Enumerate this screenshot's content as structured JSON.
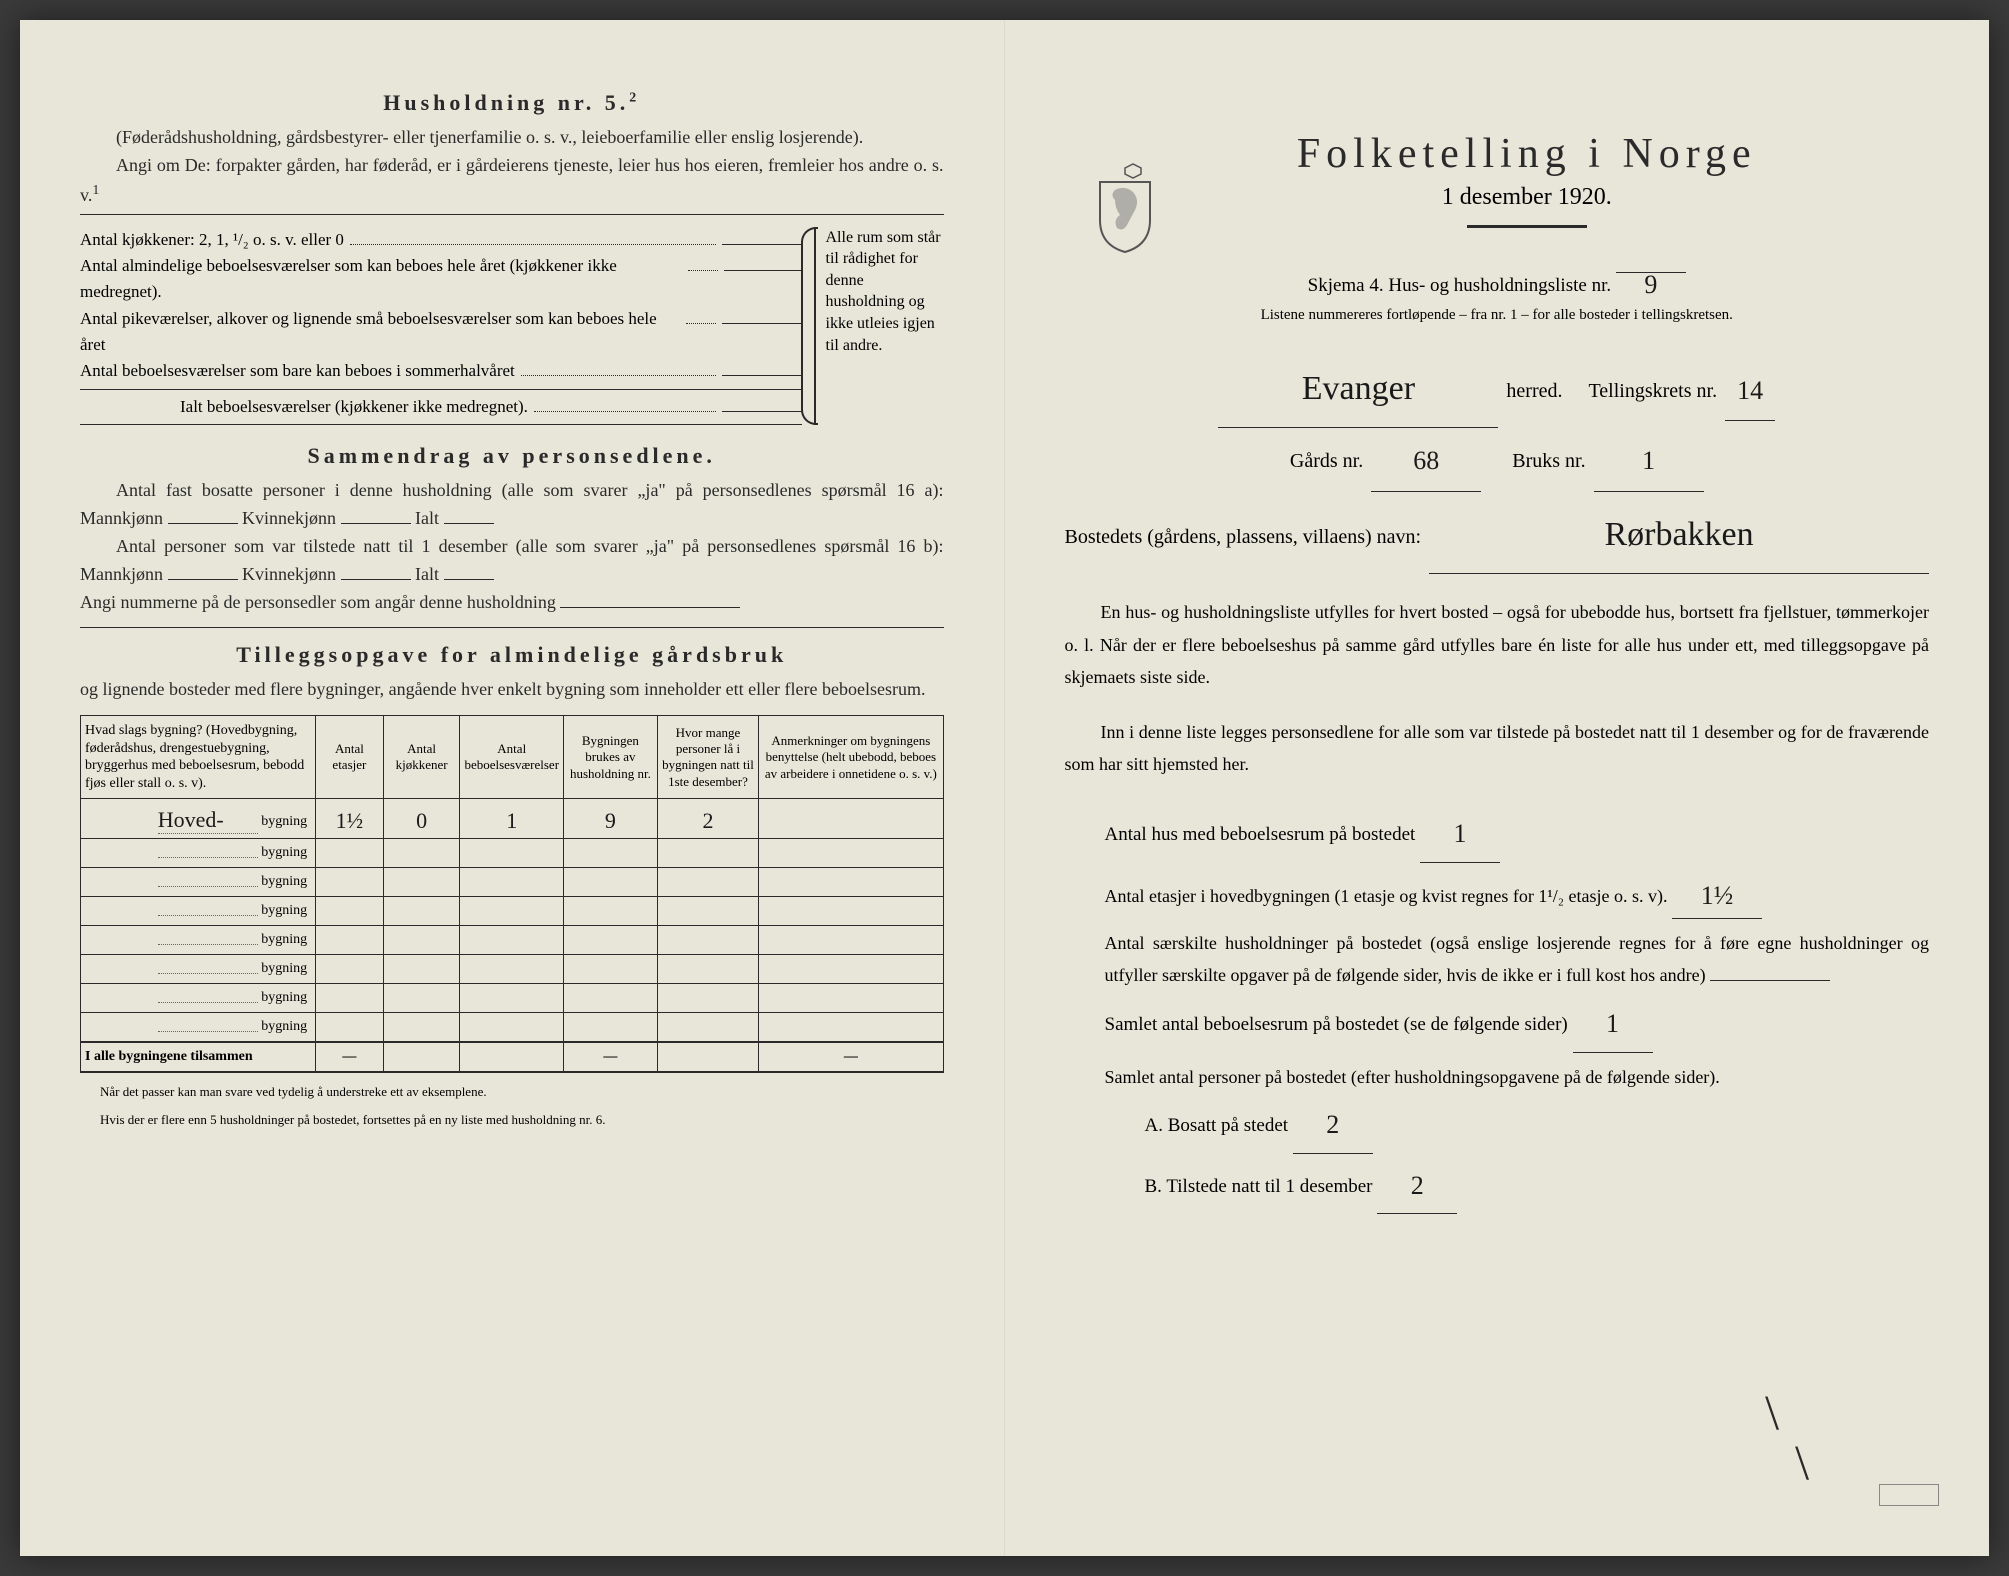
{
  "left": {
    "household_heading": "Husholdning nr. 5.",
    "household_sup": "2",
    "hh_para1": "(Føderådshusholdning, gårdsbestyrer- eller tjenerfamilie o. s. v., leieboerfamilie eller enslig losjerende).",
    "hh_para2": "Angi om De: forpakter gården, har føderåd, er i gårdeierens tjeneste, leier hus hos eieren, fremleier hos andre o. s. v.",
    "hh_para2_sup": "1",
    "rooms": {
      "kitchens": "Antal kjøkkener: 2, 1, ¹/₂ o. s. v. eller 0",
      "line1": "Antal almindelige beboelsesværelser som kan beboes hele året (kjøkkener ikke medregnet).",
      "line2": "Antal pikeværelser, alkover og lignende små beboelsesværelser som kan beboes hele året",
      "line3": "Antal beboelsesværelser som bare kan beboes i sommerhalvåret",
      "total": "Ialt beboelsesværelser (kjøkkener ikke medregnet).",
      "side_note": "Alle rum som står til rådighet for denne husholdning og ikke utleies igjen til andre."
    },
    "summary_heading": "Sammendrag av personsedlene.",
    "summary_p1a": "Antal fast bosatte personer i denne husholdning (alle som svarer „ja\" på personsedlenes spørsmål 16 a): Mannkjønn",
    "summary_kvin": "Kvinnekjønn",
    "summary_ialt": "Ialt",
    "summary_p2a": "Antal personer som var tilstede natt til 1 desember (alle som svarer „ja\" på personsedlenes spørsmål 16 b): Mannkjønn",
    "summary_p3": "Angi nummerne på de personsedler som angår denne husholdning",
    "tillegg_heading": "Tilleggsopgave for almindelige gårdsbruk",
    "tillegg_sub": "og lignende bosteder med flere bygninger, angående hver enkelt bygning som inneholder ett eller flere beboelsesrum.",
    "table": {
      "headers": [
        "Hvad slags bygning?\n(Hovedbygning, føderådshus, drengestuebygning, bryggerhus med beboelsesrum, bebodd fjøs eller stall o. s. v).",
        "Antal etasjer",
        "Antal kjøkkener",
        "Antal beboelsesværelser",
        "Bygningen brukes av husholdning nr.",
        "Hvor mange personer lå i bygningen natt til 1ste desember?",
        "Anmerkninger om bygningens benyttelse (helt ubebodd, beboes av arbeidere i onnetidene o. s. v.)"
      ],
      "row_label": "bygning",
      "rows": [
        {
          "name": "Hoved-",
          "etasjer": "1½",
          "kjokken": "0",
          "beboelse": "1",
          "hushold": "9",
          "personer": "2",
          "anm": ""
        },
        {
          "name": "",
          "etasjer": "",
          "kjokken": "",
          "beboelse": "",
          "hushold": "",
          "personer": "",
          "anm": ""
        },
        {
          "name": "",
          "etasjer": "",
          "kjokken": "",
          "beboelse": "",
          "hushold": "",
          "personer": "",
          "anm": ""
        },
        {
          "name": "",
          "etasjer": "",
          "kjokken": "",
          "beboelse": "",
          "hushold": "",
          "personer": "",
          "anm": ""
        },
        {
          "name": "",
          "etasjer": "",
          "kjokken": "",
          "beboelse": "",
          "hushold": "",
          "personer": "",
          "anm": ""
        },
        {
          "name": "",
          "etasjer": "",
          "kjokken": "",
          "beboelse": "",
          "hushold": "",
          "personer": "",
          "anm": ""
        },
        {
          "name": "",
          "etasjer": "",
          "kjokken": "",
          "beboelse": "",
          "hushold": "",
          "personer": "",
          "anm": ""
        },
        {
          "name": "",
          "etasjer": "",
          "kjokken": "",
          "beboelse": "",
          "hushold": "",
          "personer": "",
          "anm": ""
        }
      ],
      "sum_label": "I alle bygningene tilsammen",
      "dash": "—"
    },
    "footnote1": "Når det passer kan man svare ved tydelig å understreke ett av eksemplene.",
    "footnote2": "Hvis der er flere enn 5 husholdninger på bostedet, fortsettes på en ny liste med husholdning nr. 6."
  },
  "right": {
    "main_title": "Folketelling i Norge",
    "date": "1 desember 1920.",
    "skjema_line": "Skjema 4.  Hus- og husholdningsliste nr.",
    "skjema_nr": "9",
    "listene_note": "Listene nummereres fortløpende – fra nr. 1 – for alle bosteder i tellingskretsen.",
    "herred_value": "Evanger",
    "herred_label": "herred.",
    "tellingskrets_label": "Tellingskrets nr.",
    "tellingskrets_nr": "14",
    "gards_label": "Gårds nr.",
    "gards_nr": "68",
    "bruks_label": "Bruks nr.",
    "bruks_nr": "1",
    "bosted_label": "Bostedets (gårdens, plassens, villaens) navn:",
    "bosted_value": "Rørbakken",
    "para1": "En hus- og husholdningsliste utfylles for hvert bosted – også for ubebodde hus, bortsett fra fjellstuer, tømmerkojer o. l. Når der er flere beboelseshus på samme gård utfylles bare én liste for alle hus under ett, med tilleggsopgave på skjemaets siste side.",
    "para2": "Inn i denne liste legges personsedlene for alle som var tilstede på bostedet natt til 1 desember og for de fraværende som har sitt hjemsted her.",
    "q1_label": "Antal hus med beboelsesrum på bostedet",
    "q1_value": "1",
    "q2_label_a": "Antal etasjer i hovedbygningen (1 etasje og kvist regnes for 1¹/₂ etasje o. s. v).",
    "q2_value": "1½",
    "q3_label": "Antal særskilte husholdninger på bostedet (også enslige losjerende regnes for å føre egne husholdninger og utfyller særskilte opgaver på de følgende sider, hvis de ikke er i full kost hos andre)",
    "q3_value": "",
    "q4_label": "Samlet antal beboelsesrum på bostedet (se de følgende sider)",
    "q4_value": "1",
    "q5_label": "Samlet antal personer på bostedet (efter husholdningsopgavene på de følgende sider).",
    "qA_label": "A.  Bosatt på stedet",
    "qA_value": "2",
    "qB_label": "B.  Tilstede natt til 1 desember",
    "qB_value": "2"
  },
  "colors": {
    "paper": "#e8e6d8",
    "ink": "#2a2a2a",
    "handwriting": "#1a1a1a"
  }
}
